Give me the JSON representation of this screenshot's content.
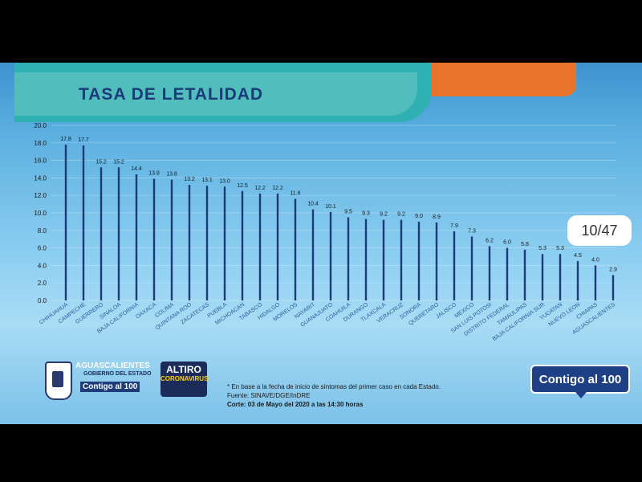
{
  "slide": {
    "title": "TASA DE LETALIDAD",
    "pager": "10/47",
    "logos": {
      "aguascalientes": "AGUASCALIENTES",
      "gobierno": "GOBIERNO DEL ESTADO",
      "contigo_small": "Contigo al 100",
      "altiro_line1": "ALTIRO",
      "altiro_line2": "CORONAVIRUS",
      "contigo_badge": "Contigo al 100"
    },
    "notes": {
      "line1": "* En base a la fecha de inicio de síntomas del primer caso en cada Estado.",
      "line2": "Fuente: SINAVE/DGE/InDRE",
      "line3": "Corte: 03 de Mayo del 2020 a las 14:30 horas"
    },
    "colors": {
      "bar": "#1b3a78",
      "orange": "#e8732b",
      "teal": "#2fb0b2"
    }
  },
  "chart_data": {
    "type": "bar",
    "title": "TASA DE LETALIDAD",
    "categories": [
      "CHIHUAHUA",
      "CAMPECHE",
      "GUERRERO",
      "SINALOA",
      "BAJA CALIFORNIA",
      "OAXACA",
      "COLIMA",
      "QUINTANA ROO",
      "ZACATECAS",
      "PUEBLA",
      "MICHOACAN",
      "TABASCO",
      "HIDALGO",
      "MORELOS",
      "NAYARIT",
      "GUANAJUATO",
      "COAHUILA",
      "DURANGO",
      "TLAXCALA",
      "VERACRUZ",
      "SONORA",
      "QUERETARO",
      "JALISCO",
      "MEXICO",
      "SAN LUIS POTOSI",
      "DISTRITO FEDERAL",
      "TAMAULIPAS",
      "BAJA CALIFORNIA SUR",
      "YUCATAN",
      "NUEVO LEON",
      "CHIAPAS",
      "AGUASCALIENTES"
    ],
    "values": [
      17.8,
      17.7,
      15.2,
      15.2,
      14.4,
      13.9,
      13.8,
      13.2,
      13.1,
      13.0,
      12.5,
      12.2,
      12.2,
      11.6,
      10.4,
      10.1,
      9.5,
      9.3,
      9.2,
      9.2,
      9.0,
      8.9,
      7.9,
      7.3,
      6.2,
      6.0,
      5.8,
      5.3,
      5.3,
      4.5,
      4.0,
      2.9
    ],
    "value_labels": [
      "17.8",
      "17.7",
      "15.2",
      "15.2",
      "14.4",
      "13.9",
      "13.8",
      "13.2",
      "13.1",
      "13.0",
      "12.5",
      "12.2",
      "12.2",
      "11.6",
      "10.4",
      "10.1",
      "9.5",
      "9.3",
      "9.2",
      "9.2",
      "9.0",
      "8.9",
      "7.9",
      "7.3",
      "6.2",
      "6.0",
      "5.8",
      "5.3",
      "5.3",
      "4.5",
      "4.0",
      "2.9"
    ],
    "yticks": [
      "0.0",
      "2.0",
      "4.0",
      "6.0",
      "8.0",
      "10.0",
      "12.0",
      "14.0",
      "16.0",
      "18.0",
      "20.0"
    ],
    "ylim": [
      0,
      20
    ],
    "grid": true
  }
}
